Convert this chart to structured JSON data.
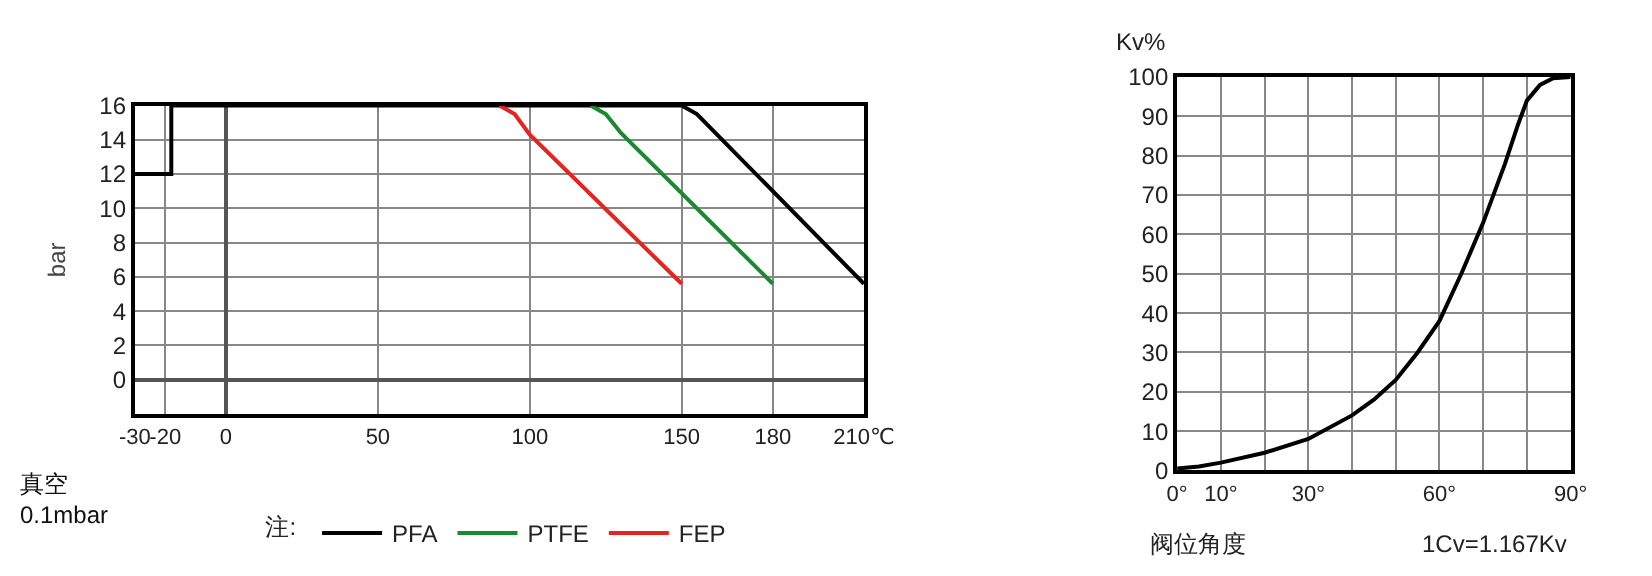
{
  "chart_data": [
    {
      "type": "line",
      "ylabel": "bar",
      "legend_title": "注:",
      "annotations": [
        "真空\n0.1mbar"
      ],
      "xlim": [
        -30,
        210
      ],
      "ylim": [
        -2,
        16
      ],
      "xticks": [
        -30,
        -20,
        0,
        50,
        100,
        150,
        180,
        {
          "value": 210,
          "label": "210℃"
        }
      ],
      "yticks": [
        0,
        2,
        4,
        6,
        8,
        10,
        12,
        14,
        16
      ],
      "grid": true,
      "legend": "bottom",
      "line_style": "solid",
      "marker": "none",
      "series": [
        {
          "name": "PFA",
          "color": "#000000",
          "x": [
            -30,
            -18,
            -18,
            150,
            155,
            210
          ],
          "values": [
            12,
            12,
            16,
            16,
            15.5,
            5.6
          ]
        },
        {
          "name": "PTFE",
          "color": "#1a8a2e",
          "x": [
            120,
            125,
            130,
            180
          ],
          "values": [
            16,
            15.5,
            14.4,
            5.6
          ]
        },
        {
          "name": "FEP",
          "color": "#e52420",
          "x": [
            90,
            95,
            100,
            150
          ],
          "values": [
            16,
            15.5,
            14.3,
            5.6
          ]
        }
      ]
    },
    {
      "type": "line",
      "xlabel": "阀位角度",
      "ylabel": "Kv%",
      "annotations": [
        "1Cv=1.167Kv"
      ],
      "xlim": [
        0,
        90
      ],
      "ylim": [
        0,
        100
      ],
      "xticks": [
        {
          "value": 0,
          "label": "0°"
        },
        {
          "value": 10,
          "label": "10°"
        },
        {
          "value": 20,
          "label": null
        },
        {
          "value": 30,
          "label": "30°"
        },
        {
          "value": 40,
          "label": null
        },
        {
          "value": 50,
          "label": null
        },
        {
          "value": 60,
          "label": "60°"
        },
        {
          "value": 70,
          "label": null
        },
        {
          "value": 80,
          "label": null
        },
        {
          "value": 90,
          "label": "90°"
        }
      ],
      "yticks": [
        0,
        10,
        20,
        30,
        40,
        50,
        60,
        70,
        80,
        90,
        100
      ],
      "grid": true,
      "line_style": "solid",
      "marker": "none",
      "series": [
        {
          "color": "#000000",
          "x": [
            0,
            5,
            10,
            20,
            30,
            40,
            45,
            50,
            55,
            60,
            65,
            70,
            75,
            78,
            80,
            83,
            86,
            90
          ],
          "values": [
            0.5,
            1,
            2,
            4.5,
            8,
            14,
            18,
            23,
            30,
            38,
            50,
            63,
            78,
            88,
            94,
            98,
            99.7,
            100
          ]
        }
      ]
    }
  ]
}
